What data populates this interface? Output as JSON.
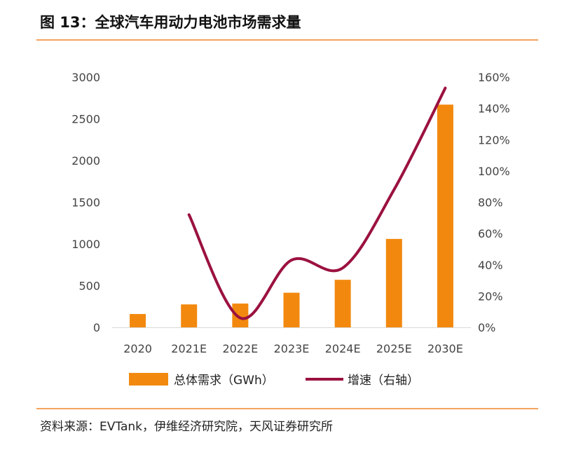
{
  "title": "图 13：全球汽车用动力电池市场需求量",
  "source": "资料来源：EVTank，伊维经济研究院，天风证券研究所",
  "colors": {
    "bar": "#f2890e",
    "line": "#9b1140",
    "rule": "#f5a35e"
  },
  "chart_data": {
    "type": "bar",
    "categories": [
      "2020",
      "2021E",
      "2022E",
      "2023E",
      "2024E",
      "2025E",
      "2030E"
    ],
    "series": [
      {
        "name": "总体需求（GWh）",
        "type": "bar",
        "axis": "left",
        "values": [
          160,
          275,
          285,
          415,
          570,
          1060,
          2670
        ]
      },
      {
        "name": "增速（右轴）",
        "type": "line",
        "axis": "right",
        "smooth": true,
        "values": [
          null,
          0.72,
          0.06,
          0.43,
          0.38,
          0.88,
          1.53
        ]
      }
    ],
    "left_axis": {
      "min": 0,
      "max": 3000,
      "ticks": [
        "0",
        "500",
        "1000",
        "1500",
        "2000",
        "2500",
        "3000"
      ]
    },
    "right_axis": {
      "min": 0,
      "max": 1.6,
      "ticks": [
        "0%",
        "20%",
        "40%",
        "60%",
        "80%",
        "100%",
        "120%",
        "140%",
        "160%"
      ]
    },
    "grid": false,
    "legend": "bottom"
  }
}
